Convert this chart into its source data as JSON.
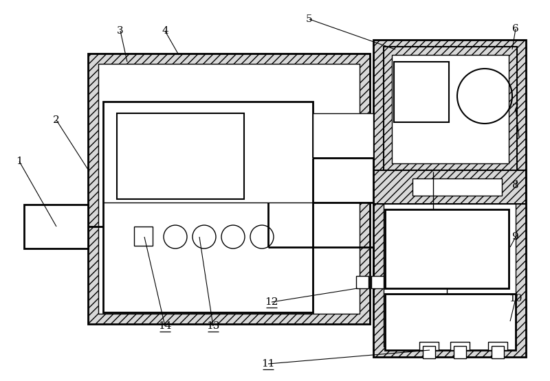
{
  "fig_width": 8.0,
  "fig_height": 5.55,
  "dpi": 100,
  "bg_color": "#ffffff",
  "line_color": "#000000",
  "label_fontsize": 11
}
